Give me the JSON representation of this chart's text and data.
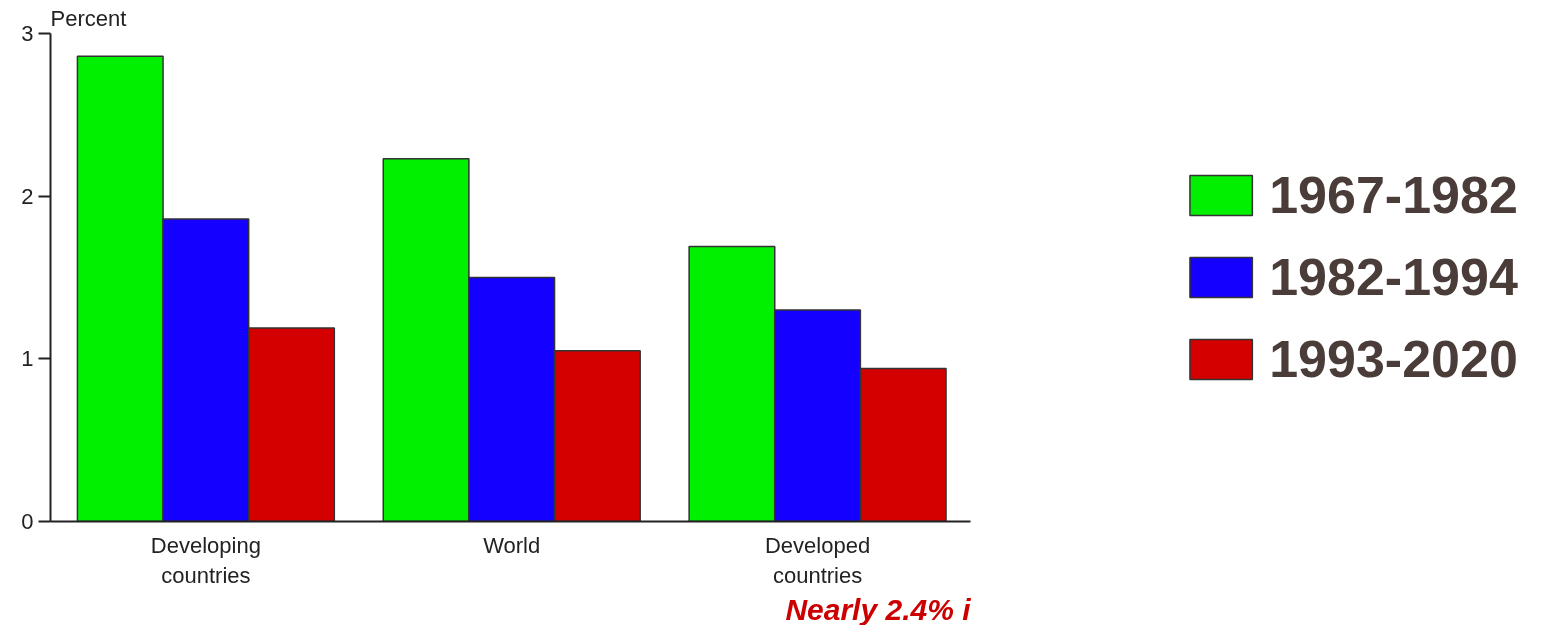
{
  "chart_data": {
    "type": "bar",
    "ylabel": "Percent",
    "categories": [
      "Developing countries",
      "World",
      "Developed countries"
    ],
    "series": [
      {
        "name": "1967-1982",
        "color": "#00f000",
        "values": [
          2.86,
          2.23,
          1.69
        ]
      },
      {
        "name": "1982-1994",
        "color": "#1400ff",
        "values": [
          1.86,
          1.5,
          1.3
        ]
      },
      {
        "name": "1993-2020",
        "color": "#d40000",
        "values": [
          1.19,
          1.05,
          0.94
        ]
      }
    ],
    "ylim": [
      0,
      3
    ],
    "yticks": [
      0,
      1,
      2,
      3
    ],
    "grid": false,
    "legend": "right",
    "annotations": [
      "Nearly 2.4% i"
    ]
  }
}
